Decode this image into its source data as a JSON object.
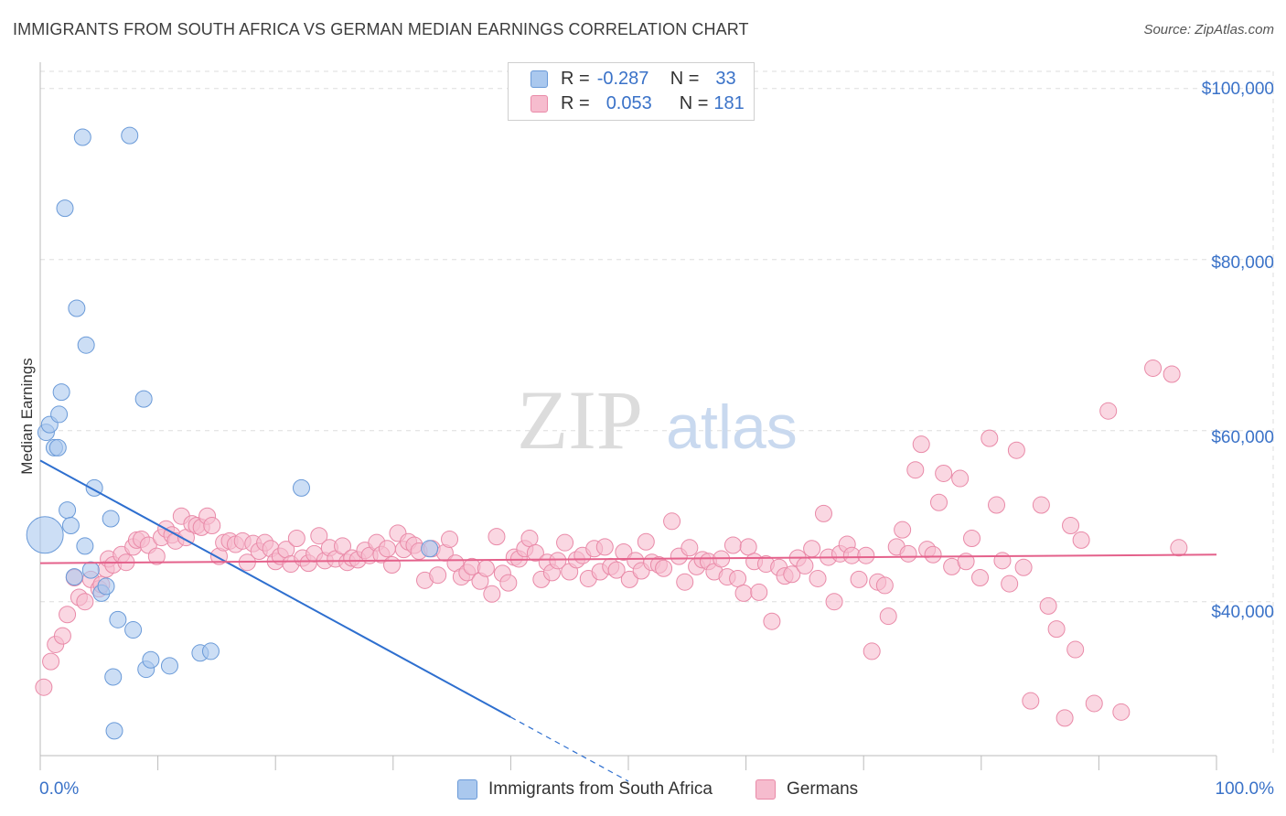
{
  "title": "IMMIGRANTS FROM SOUTH AFRICA VS GERMAN MEDIAN EARNINGS CORRELATION CHART",
  "source": "Source: ZipAtlas.com",
  "watermark": {
    "zip": "ZIP",
    "atlas": "atlas"
  },
  "legend": {
    "series1": {
      "r_label": "R =",
      "r_value": "-0.287",
      "n_label": "N =",
      "n_value": "33"
    },
    "series2": {
      "r_label": "R =",
      "r_value": "0.053",
      "n_label": "N =",
      "n_value": "181"
    }
  },
  "colors": {
    "blue_fill": "#aac8ee",
    "blue_stroke": "#6a9ad8",
    "blue_line": "#2e6fcf",
    "pink_fill": "#f6bcce",
    "pink_stroke": "#e98aa8",
    "pink_line": "#e4618b",
    "tick_text": "#3a72c8",
    "grid": "#dddddd"
  },
  "chart_data": {
    "type": "scatter",
    "title": "IMMIGRANTS FROM SOUTH AFRICA VS GERMAN MEDIAN EARNINGS CORRELATION CHART",
    "xlabel": "",
    "ylabel": "Median Earnings",
    "xlim": [
      0,
      100
    ],
    "ylim": [
      22000,
      102000
    ],
    "x_tick_labels": [
      "0.0%",
      "100.0%"
    ],
    "y_ticks": [
      40000,
      60000,
      80000,
      100000
    ],
    "y_tick_labels": [
      "$40,000",
      "$60,000",
      "$80,000",
      "$100,000"
    ],
    "grid": true,
    "series": [
      {
        "name": "Immigrants from South Africa",
        "color": "#aac8ee",
        "r": -0.287,
        "n": 33,
        "trend": {
          "x0": 0,
          "y0": 56500,
          "x1": 40,
          "y1": 26500,
          "dash_to_x": 50
        },
        "points": [
          [
            0.4,
            47800
          ],
          [
            0.5,
            59800
          ],
          [
            0.8,
            60700
          ],
          [
            1.2,
            58000
          ],
          [
            1.5,
            58000
          ],
          [
            1.6,
            61900
          ],
          [
            1.8,
            64500
          ],
          [
            2.1,
            86000
          ],
          [
            2.3,
            50700
          ],
          [
            2.6,
            48900
          ],
          [
            2.9,
            42900
          ],
          [
            3.1,
            74300
          ],
          [
            3.6,
            94300
          ],
          [
            3.8,
            46500
          ],
          [
            3.9,
            70000
          ],
          [
            4.3,
            43700
          ],
          [
            4.6,
            53300
          ],
          [
            5.2,
            41000
          ],
          [
            5.6,
            41800
          ],
          [
            6.0,
            49700
          ],
          [
            6.2,
            31200
          ],
          [
            6.3,
            24900
          ],
          [
            6.6,
            37900
          ],
          [
            7.6,
            94500
          ],
          [
            7.9,
            36700
          ],
          [
            8.8,
            63700
          ],
          [
            9.0,
            32100
          ],
          [
            9.4,
            33200
          ],
          [
            11.0,
            32500
          ],
          [
            13.6,
            34000
          ],
          [
            14.5,
            34200
          ],
          [
            22.2,
            53300
          ],
          [
            33.1,
            46200
          ]
        ]
      },
      {
        "name": "Germans",
        "color": "#f6bcce",
        "r": 0.053,
        "n": 181,
        "trend": {
          "x0": 0,
          "y0": 44500,
          "x1": 100,
          "y1": 45500
        },
        "points": [
          [
            0.3,
            30000
          ],
          [
            0.9,
            33000
          ],
          [
            1.3,
            35000
          ],
          [
            1.9,
            36000
          ],
          [
            2.3,
            38500
          ],
          [
            2.9,
            42800
          ],
          [
            3.3,
            40500
          ],
          [
            3.8,
            40000
          ],
          [
            4.3,
            42600
          ],
          [
            5.0,
            41500
          ],
          [
            5.2,
            42000
          ],
          [
            5.6,
            43800
          ],
          [
            5.8,
            45000
          ],
          [
            6.2,
            44300
          ],
          [
            6.9,
            45500
          ],
          [
            7.3,
            44600
          ],
          [
            7.9,
            46400
          ],
          [
            8.2,
            47200
          ],
          [
            8.6,
            47300
          ],
          [
            9.2,
            46600
          ],
          [
            9.9,
            45300
          ],
          [
            10.3,
            47500
          ],
          [
            10.7,
            48500
          ],
          [
            11.2,
            47800
          ],
          [
            11.5,
            47100
          ],
          [
            12.0,
            50000
          ],
          [
            12.4,
            47500
          ],
          [
            12.9,
            49100
          ],
          [
            13.3,
            48900
          ],
          [
            13.7,
            48700
          ],
          [
            14.2,
            50000
          ],
          [
            14.6,
            48900
          ],
          [
            15.2,
            45300
          ],
          [
            15.6,
            46900
          ],
          [
            16.1,
            47100
          ],
          [
            16.6,
            46700
          ],
          [
            17.2,
            47100
          ],
          [
            17.6,
            44600
          ],
          [
            18.1,
            46800
          ],
          [
            18.6,
            45900
          ],
          [
            19.1,
            46900
          ],
          [
            19.6,
            46200
          ],
          [
            20.0,
            44700
          ],
          [
            20.4,
            45300
          ],
          [
            20.9,
            46100
          ],
          [
            21.3,
            44400
          ],
          [
            21.8,
            47400
          ],
          [
            22.3,
            45100
          ],
          [
            22.8,
            44500
          ],
          [
            23.3,
            45600
          ],
          [
            23.7,
            47700
          ],
          [
            24.2,
            44800
          ],
          [
            24.6,
            46300
          ],
          [
            25.1,
            45000
          ],
          [
            25.7,
            46500
          ],
          [
            26.1,
            44600
          ],
          [
            26.5,
            45100
          ],
          [
            27.0,
            44900
          ],
          [
            27.6,
            46000
          ],
          [
            28.0,
            45400
          ],
          [
            28.6,
            46900
          ],
          [
            29.0,
            45500
          ],
          [
            29.5,
            46200
          ],
          [
            29.9,
            44300
          ],
          [
            30.4,
            48000
          ],
          [
            30.9,
            46100
          ],
          [
            31.3,
            47000
          ],
          [
            31.8,
            46600
          ],
          [
            32.2,
            45900
          ],
          [
            32.7,
            42500
          ],
          [
            33.3,
            46200
          ],
          [
            33.8,
            43100
          ],
          [
            34.4,
            45700
          ],
          [
            34.8,
            47300
          ],
          [
            35.3,
            44500
          ],
          [
            35.8,
            42900
          ],
          [
            36.3,
            43400
          ],
          [
            36.7,
            44100
          ],
          [
            37.4,
            42400
          ],
          [
            37.9,
            43900
          ],
          [
            38.4,
            40900
          ],
          [
            38.8,
            47600
          ],
          [
            39.3,
            43300
          ],
          [
            39.8,
            42200
          ],
          [
            40.3,
            45200
          ],
          [
            40.7,
            45000
          ],
          [
            41.2,
            46200
          ],
          [
            41.6,
            47400
          ],
          [
            42.1,
            45700
          ],
          [
            42.6,
            42600
          ],
          [
            43.1,
            44600
          ],
          [
            43.5,
            43400
          ],
          [
            44.0,
            44800
          ],
          [
            44.6,
            46900
          ],
          [
            45.0,
            43500
          ],
          [
            45.6,
            44900
          ],
          [
            46.1,
            45400
          ],
          [
            46.6,
            42700
          ],
          [
            47.1,
            46200
          ],
          [
            47.6,
            43500
          ],
          [
            48.0,
            46400
          ],
          [
            48.5,
            44100
          ],
          [
            49.0,
            43700
          ],
          [
            49.6,
            45800
          ],
          [
            50.1,
            42600
          ],
          [
            50.6,
            44800
          ],
          [
            51.1,
            43600
          ],
          [
            51.5,
            47000
          ],
          [
            52.0,
            44600
          ],
          [
            52.6,
            44300
          ],
          [
            53.0,
            43900
          ],
          [
            53.7,
            49400
          ],
          [
            54.3,
            45300
          ],
          [
            54.8,
            42300
          ],
          [
            55.2,
            46300
          ],
          [
            55.8,
            44100
          ],
          [
            56.3,
            44900
          ],
          [
            56.8,
            44700
          ],
          [
            57.3,
            43500
          ],
          [
            57.9,
            45000
          ],
          [
            58.4,
            42900
          ],
          [
            58.9,
            46600
          ],
          [
            59.3,
            42700
          ],
          [
            59.8,
            41000
          ],
          [
            60.2,
            46400
          ],
          [
            60.7,
            44700
          ],
          [
            61.1,
            41100
          ],
          [
            61.7,
            44400
          ],
          [
            62.2,
            37700
          ],
          [
            62.8,
            44000
          ],
          [
            63.3,
            43000
          ],
          [
            63.9,
            43200
          ],
          [
            64.4,
            45100
          ],
          [
            65.0,
            44200
          ],
          [
            65.6,
            46200
          ],
          [
            66.1,
            42700
          ],
          [
            66.6,
            50300
          ],
          [
            67.0,
            45200
          ],
          [
            67.5,
            40000
          ],
          [
            68.0,
            45600
          ],
          [
            68.6,
            46700
          ],
          [
            69.0,
            45400
          ],
          [
            69.6,
            42600
          ],
          [
            70.2,
            45400
          ],
          [
            70.7,
            34200
          ],
          [
            71.2,
            42300
          ],
          [
            71.8,
            41900
          ],
          [
            72.1,
            38300
          ],
          [
            72.8,
            46400
          ],
          [
            73.3,
            48400
          ],
          [
            73.8,
            45600
          ],
          [
            74.4,
            55400
          ],
          [
            74.9,
            58400
          ],
          [
            75.4,
            46100
          ],
          [
            75.9,
            45500
          ],
          [
            76.4,
            51600
          ],
          [
            76.8,
            55000
          ],
          [
            77.5,
            44100
          ],
          [
            78.2,
            54400
          ],
          [
            78.7,
            44700
          ],
          [
            79.2,
            47400
          ],
          [
            79.9,
            42800
          ],
          [
            80.7,
            59100
          ],
          [
            81.3,
            51300
          ],
          [
            81.8,
            44800
          ],
          [
            82.4,
            42100
          ],
          [
            83.0,
            57700
          ],
          [
            83.6,
            44000
          ],
          [
            84.2,
            28400
          ],
          [
            85.1,
            51300
          ],
          [
            85.7,
            39500
          ],
          [
            86.4,
            36800
          ],
          [
            87.1,
            26400
          ],
          [
            87.6,
            48900
          ],
          [
            88.0,
            34400
          ],
          [
            88.5,
            47200
          ],
          [
            89.6,
            28100
          ],
          [
            90.8,
            62300
          ],
          [
            91.9,
            27100
          ],
          [
            94.6,
            67300
          ],
          [
            96.2,
            66600
          ],
          [
            96.8,
            46300
          ]
        ]
      }
    ]
  },
  "bottom_legend": {
    "series1": "Immigrants from South Africa",
    "series2": "Germans"
  }
}
